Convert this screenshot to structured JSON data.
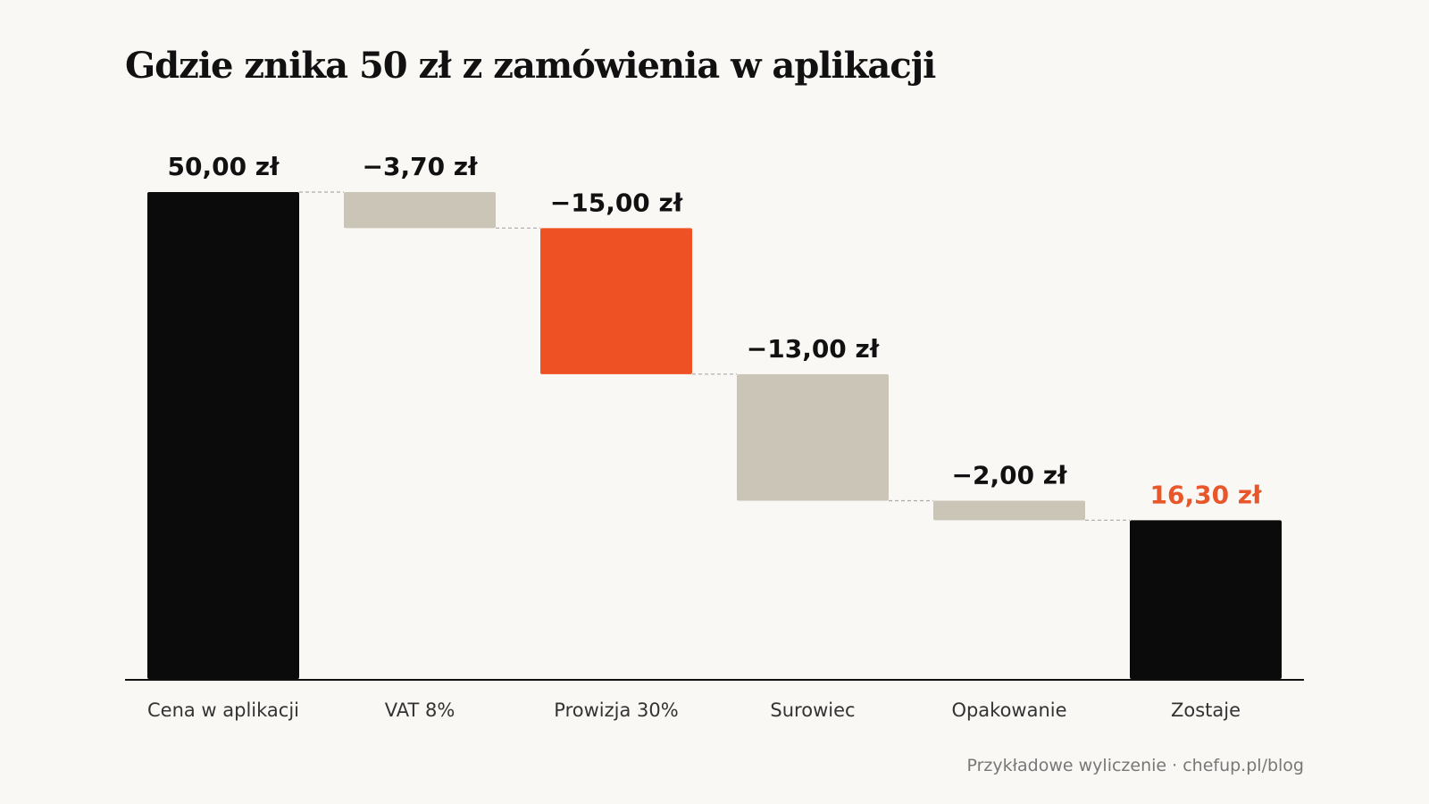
{
  "title": "Gdzie znika 50 zł z zamówienia w aplikacji",
  "footer": "Przykładowe wyliczenie · chefup.pl/blog",
  "colors": {
    "total": "#0b0b0b",
    "decrease": "#cbc5b8",
    "highlight": "#ee5123",
    "text": "#111111",
    "highlight_text": "#e8562a",
    "axis_label": "#333333",
    "connector": "#aaaaaa",
    "background": "#f9f8f4"
  },
  "chart_data": {
    "type": "waterfall",
    "ylim": [
      0,
      50
    ],
    "grid": false,
    "categories": [
      "Cena w aplikacji",
      "VAT 8%",
      "Prowizja 30%",
      "Surowiec",
      "Opakowanie",
      "Zostaje"
    ],
    "steps": [
      {
        "category": "Cena w aplikacji",
        "kind": "total",
        "value": 50.0,
        "label": "50,00 zł",
        "style": "total"
      },
      {
        "category": "VAT 8%",
        "kind": "delta",
        "value": -3.7,
        "label": "−3,70 zł",
        "style": "decrease"
      },
      {
        "category": "Prowizja 30%",
        "kind": "delta",
        "value": -15.0,
        "label": "−15,00 zł",
        "style": "highlight"
      },
      {
        "category": "Surowiec",
        "kind": "delta",
        "value": -13.0,
        "label": "−13,00 zł",
        "style": "decrease"
      },
      {
        "category": "Opakowanie",
        "kind": "delta",
        "value": -2.0,
        "label": "−2,00 zł",
        "style": "decrease"
      },
      {
        "category": "Zostaje",
        "kind": "total",
        "value": 16.3,
        "label": "16,30 zł",
        "style": "total",
        "label_style": "highlight"
      }
    ]
  }
}
